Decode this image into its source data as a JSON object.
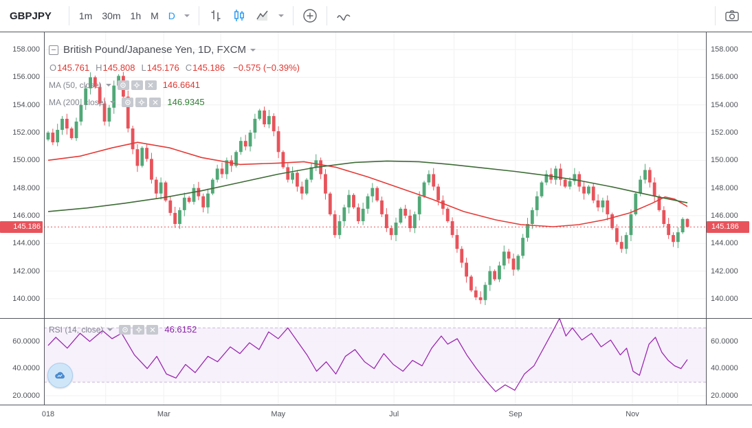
{
  "toolbar": {
    "symbol": "GBPJPY",
    "timeframes": [
      {
        "label": "1m",
        "active": false
      },
      {
        "label": "30m",
        "active": false
      },
      {
        "label": "1h",
        "active": false
      },
      {
        "label": "M",
        "active": false
      },
      {
        "label": "D",
        "active": true
      }
    ],
    "icons": [
      "bars-style-icon",
      "candles-style-icon",
      "area-style-icon",
      "compare-add-icon",
      "curve-line-icon",
      "camera-snapshot-icon"
    ]
  },
  "main_legend": {
    "title": "British Pound/Japanese Yen, 1D, FXCM",
    "ohlc": {
      "o_label": "O",
      "o": "145.761",
      "h_label": "H",
      "h": "145.808",
      "l_label": "L",
      "l": "145.176",
      "c_label": "C",
      "c": "145.186",
      "change": "−0.575 (−0.39%)"
    },
    "ma50_label": "MA (50, close)",
    "ma50_value": "146.6641",
    "ma200_label": "MA (200, close)",
    "ma200_value": "146.9345"
  },
  "rsi_legend": {
    "label": "RSI (14, close)",
    "value": "46.6152"
  },
  "colors": {
    "accent_blue": "#2196f3",
    "up": "#51a877",
    "down": "#e8535b",
    "ma50": "#e53935",
    "ma200": "#3d6b35",
    "rsi": "#9c27b0",
    "badge": "#e8535b",
    "grid": "#f1f1f1",
    "band_fill": "#f5eefa",
    "band_edge": "#c9b6d9"
  },
  "chart_data": {
    "type": "candlestick",
    "title": "British Pound/Japanese Yen, 1D, FXCM",
    "symbol": "GBPJPY",
    "interval": "1D",
    "exchange": "FXCM",
    "last": {
      "open": 145.761,
      "high": 145.808,
      "low": 145.176,
      "close": 145.186,
      "change": -0.575,
      "change_pct": -0.39
    },
    "price_axis": {
      "range": [
        138.6,
        159.25
      ],
      "ticks": [
        158,
        156,
        154,
        152,
        150,
        148,
        146,
        144,
        142,
        140
      ],
      "last_price": 145.186
    },
    "candles": {
      "first_open": 151.5,
      "last_ohlc": [
        145.761,
        145.808,
        145.176,
        145.186
      ],
      "closes": [
        152.0,
        151.3,
        152.2,
        153.0,
        152.3,
        151.6,
        152.8,
        154.0,
        155.2,
        156.0,
        155.3,
        154.1,
        152.8,
        153.8,
        155.4,
        156.1,
        154.6,
        152.3,
        150.8,
        149.6,
        150.9,
        150.1,
        148.6,
        147.6,
        148.4,
        147.1,
        146.2,
        145.4,
        146.4,
        147.3,
        147.0,
        148.0,
        147.4,
        146.6,
        147.6,
        148.6,
        149.4,
        149.0,
        150.0,
        149.6,
        150.6,
        151.4,
        151.0,
        152.0,
        153.0,
        153.6,
        152.6,
        153.2,
        152.1,
        150.6,
        149.5,
        148.6,
        149.1,
        148.1,
        147.6,
        148.6,
        149.5,
        150.0,
        149.0,
        147.6,
        146.1,
        144.6,
        145.6,
        146.6,
        147.5,
        146.6,
        145.6,
        146.5,
        147.4,
        148.0,
        147.1,
        146.1,
        145.1,
        144.6,
        145.5,
        146.5,
        146.0,
        145.1,
        146.1,
        147.4,
        148.4,
        149.0,
        148.1,
        147.1,
        146.5,
        145.6,
        144.6,
        143.6,
        142.6,
        141.6,
        140.6,
        140.1,
        139.9,
        141.0,
        142.0,
        141.4,
        142.4,
        143.4,
        142.9,
        142.1,
        143.1,
        144.4,
        145.4,
        146.4,
        147.4,
        148.4,
        149.0,
        148.6,
        149.4,
        148.6,
        148.1,
        148.5,
        149.0,
        148.1,
        147.6,
        148.1,
        147.1,
        146.6,
        147.1,
        146.1,
        145.1,
        144.1,
        143.6,
        144.6,
        146.1,
        147.6,
        148.6,
        149.3,
        148.4,
        147.4,
        146.4,
        145.4,
        144.6,
        144.1,
        144.8,
        145.761,
        145.186
      ]
    },
    "overlays": [
      {
        "name": "MA (50, close)",
        "value": 146.6641,
        "color": "#e53935",
        "points": [
          [
            0,
            150.0
          ],
          [
            0.05,
            150.3
          ],
          [
            0.1,
            150.9
          ],
          [
            0.14,
            151.3
          ],
          [
            0.19,
            150.9
          ],
          [
            0.24,
            150.2
          ],
          [
            0.3,
            149.7
          ],
          [
            0.36,
            149.8
          ],
          [
            0.4,
            149.9
          ],
          [
            0.45,
            149.5
          ],
          [
            0.5,
            148.8
          ],
          [
            0.55,
            148.0
          ],
          [
            0.6,
            147.2
          ],
          [
            0.65,
            146.3
          ],
          [
            0.7,
            145.7
          ],
          [
            0.74,
            145.35
          ],
          [
            0.79,
            145.2
          ],
          [
            0.83,
            145.35
          ],
          [
            0.87,
            145.7
          ],
          [
            0.91,
            146.2
          ],
          [
            0.945,
            146.9
          ],
          [
            0.965,
            147.35
          ],
          [
            0.98,
            147.2
          ],
          [
            1,
            146.66
          ]
        ]
      },
      {
        "name": "MA (200, close)",
        "value": 146.9345,
        "color": "#3d6b35",
        "points": [
          [
            0,
            146.3
          ],
          [
            0.06,
            146.55
          ],
          [
            0.12,
            146.9
          ],
          [
            0.18,
            147.3
          ],
          [
            0.24,
            147.8
          ],
          [
            0.3,
            148.4
          ],
          [
            0.36,
            149.0
          ],
          [
            0.42,
            149.5
          ],
          [
            0.48,
            149.85
          ],
          [
            0.53,
            149.95
          ],
          [
            0.58,
            149.9
          ],
          [
            0.63,
            149.7
          ],
          [
            0.68,
            149.45
          ],
          [
            0.73,
            149.2
          ],
          [
            0.78,
            148.9
          ],
          [
            0.83,
            148.55
          ],
          [
            0.88,
            148.1
          ],
          [
            0.92,
            147.7
          ],
          [
            0.96,
            147.3
          ],
          [
            1,
            146.93
          ]
        ]
      }
    ],
    "rsi": {
      "name": "RSI (14, close)",
      "period": 14,
      "value": 46.6152,
      "color": "#9c27b0",
      "axis_range": [
        13.4,
        77.2
      ],
      "ticks": [
        60,
        40,
        20
      ],
      "bands": [
        70,
        30
      ],
      "points": [
        [
          0,
          57
        ],
        [
          0.012,
          63
        ],
        [
          0.03,
          55
        ],
        [
          0.05,
          66
        ],
        [
          0.065,
          60
        ],
        [
          0.085,
          68
        ],
        [
          0.1,
          62
        ],
        [
          0.115,
          66
        ],
        [
          0.135,
          50
        ],
        [
          0.155,
          40
        ],
        [
          0.17,
          49
        ],
        [
          0.185,
          36
        ],
        [
          0.2,
          33
        ],
        [
          0.215,
          43
        ],
        [
          0.23,
          37
        ],
        [
          0.25,
          49
        ],
        [
          0.265,
          45
        ],
        [
          0.285,
          56
        ],
        [
          0.3,
          51
        ],
        [
          0.315,
          59
        ],
        [
          0.33,
          54
        ],
        [
          0.345,
          67
        ],
        [
          0.36,
          62
        ],
        [
          0.375,
          70
        ],
        [
          0.39,
          60
        ],
        [
          0.405,
          50
        ],
        [
          0.42,
          38
        ],
        [
          0.435,
          45
        ],
        [
          0.45,
          36
        ],
        [
          0.465,
          49
        ],
        [
          0.48,
          54
        ],
        [
          0.495,
          45
        ],
        [
          0.51,
          40
        ],
        [
          0.525,
          51
        ],
        [
          0.54,
          43
        ],
        [
          0.555,
          38
        ],
        [
          0.57,
          46
        ],
        [
          0.585,
          42
        ],
        [
          0.6,
          55
        ],
        [
          0.615,
          64
        ],
        [
          0.625,
          58
        ],
        [
          0.64,
          62
        ],
        [
          0.655,
          50
        ],
        [
          0.67,
          40
        ],
        [
          0.685,
          31
        ],
        [
          0.7,
          23
        ],
        [
          0.715,
          28
        ],
        [
          0.73,
          24
        ],
        [
          0.745,
          36
        ],
        [
          0.76,
          42
        ],
        [
          0.775,
          55
        ],
        [
          0.79,
          68
        ],
        [
          0.8,
          77
        ],
        [
          0.81,
          64
        ],
        [
          0.82,
          70
        ],
        [
          0.835,
          61
        ],
        [
          0.85,
          66
        ],
        [
          0.865,
          56
        ],
        [
          0.88,
          61
        ],
        [
          0.895,
          50
        ],
        [
          0.905,
          55
        ],
        [
          0.915,
          38
        ],
        [
          0.925,
          35
        ],
        [
          0.94,
          58
        ],
        [
          0.95,
          63
        ],
        [
          0.96,
          52
        ],
        [
          0.97,
          46
        ],
        [
          0.98,
          42
        ],
        [
          0.99,
          40
        ],
        [
          1,
          46.6
        ]
      ]
    },
    "time_axis": {
      "labels": [
        [
          "018",
          0
        ],
        [
          "Mar",
          0.181
        ],
        [
          "May",
          0.36
        ],
        [
          "Jul",
          0.541
        ],
        [
          "Sep",
          0.731
        ],
        [
          "Nov",
          0.914
        ]
      ],
      "gridlines": [
        0.09,
        0.181,
        0.27,
        0.36,
        0.45,
        0.541,
        0.635,
        0.731,
        0.82,
        0.914,
        0.985
      ]
    }
  }
}
